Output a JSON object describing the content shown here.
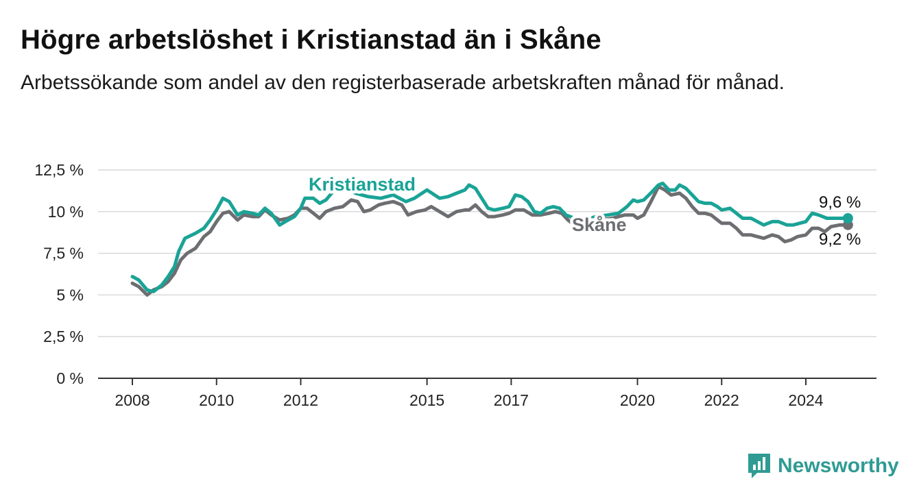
{
  "header": {
    "title": "Högre arbetslöshet i Kristianstad än i Skåne",
    "subtitle": "Arbetssökande som andel av den registerbaserade arbetskraften månad för månad."
  },
  "brand": {
    "name": "Newsworthy",
    "color": "#2f9b93",
    "icon": "bar-chart-logo-icon"
  },
  "chart_data": {
    "type": "line",
    "title": "Högre arbetslöshet i Kristianstad än i Skåne",
    "subtitle": "Arbetssökande som andel av den registerbaserade arbetskraften månad för månad.",
    "ylim": [
      0,
      12.5
    ],
    "xlim": [
      2008.0,
      2025.8
    ],
    "y_ticks": [
      {
        "value": 0,
        "label": "0 %"
      },
      {
        "value": 2.5,
        "label": "2,5 %"
      },
      {
        "value": 5,
        "label": "5 %"
      },
      {
        "value": 7.5,
        "label": "7,5 %"
      },
      {
        "value": 10,
        "label": "10 %"
      },
      {
        "value": 12.5,
        "label": "12,5 %"
      }
    ],
    "x_ticks": [
      {
        "value": 2008.0,
        "label": "2008"
      },
      {
        "value": 2010.0,
        "label": "2010"
      },
      {
        "value": 2012.0,
        "label": "2012"
      },
      {
        "value": 2015.0,
        "label": "2015"
      },
      {
        "value": 2017.0,
        "label": "2017"
      },
      {
        "value": 2020.0,
        "label": "2020"
      },
      {
        "value": 2022.0,
        "label": "2022"
      },
      {
        "value": 2024.0,
        "label": "2024"
      }
    ],
    "grid": true,
    "series": [
      {
        "name": "Kristianstad",
        "color": "#1aa396",
        "end_label": "9,6 %",
        "points": [
          [
            2008.0,
            6.1
          ],
          [
            2008.15,
            5.9
          ],
          [
            2008.35,
            5.3
          ],
          [
            2008.5,
            5.2
          ],
          [
            2008.7,
            5.6
          ],
          [
            2008.85,
            6.1
          ],
          [
            2009.0,
            6.7
          ],
          [
            2009.1,
            7.6
          ],
          [
            2009.25,
            8.4
          ],
          [
            2009.5,
            8.7
          ],
          [
            2009.7,
            9.0
          ],
          [
            2009.85,
            9.5
          ],
          [
            2010.0,
            10.1
          ],
          [
            2010.15,
            10.8
          ],
          [
            2010.3,
            10.6
          ],
          [
            2010.5,
            9.8
          ],
          [
            2010.65,
            10.0
          ],
          [
            2010.85,
            9.9
          ],
          [
            2011.0,
            9.8
          ],
          [
            2011.15,
            10.2
          ],
          [
            2011.3,
            9.9
          ],
          [
            2011.5,
            9.2
          ],
          [
            2011.7,
            9.5
          ],
          [
            2011.85,
            9.7
          ],
          [
            2012.0,
            10.2
          ],
          [
            2012.1,
            10.8
          ],
          [
            2012.3,
            10.8
          ],
          [
            2012.45,
            10.5
          ],
          [
            2012.6,
            10.7
          ],
          [
            2012.8,
            11.3
          ],
          [
            2013.0,
            11.6
          ],
          [
            2013.3,
            11.1
          ],
          [
            2013.6,
            10.9
          ],
          [
            2013.9,
            10.8
          ],
          [
            2014.2,
            11.0
          ],
          [
            2014.5,
            10.6
          ],
          [
            2014.7,
            10.8
          ],
          [
            2015.0,
            11.3
          ],
          [
            2015.3,
            10.8
          ],
          [
            2015.5,
            10.9
          ],
          [
            2015.7,
            11.1
          ],
          [
            2015.9,
            11.3
          ],
          [
            2016.0,
            11.6
          ],
          [
            2016.15,
            11.4
          ],
          [
            2016.3,
            10.8
          ],
          [
            2016.45,
            10.2
          ],
          [
            2016.6,
            10.1
          ],
          [
            2016.8,
            10.2
          ],
          [
            2016.95,
            10.3
          ],
          [
            2017.1,
            11.0
          ],
          [
            2017.25,
            10.9
          ],
          [
            2017.4,
            10.6
          ],
          [
            2017.55,
            10.0
          ],
          [
            2017.7,
            9.9
          ],
          [
            2017.85,
            10.2
          ],
          [
            2018.0,
            10.3
          ],
          [
            2018.15,
            10.2
          ],
          [
            2018.3,
            9.8
          ],
          [
            2018.5,
            9.6
          ],
          [
            2018.7,
            9.4
          ],
          [
            2019.0,
            9.7
          ],
          [
            2019.3,
            9.8
          ],
          [
            2019.55,
            9.9
          ],
          [
            2019.75,
            10.3
          ],
          [
            2019.9,
            10.7
          ],
          [
            2020.0,
            10.6
          ],
          [
            2020.15,
            10.7
          ],
          [
            2020.35,
            11.2
          ],
          [
            2020.5,
            11.6
          ],
          [
            2020.6,
            11.7
          ],
          [
            2020.75,
            11.3
          ],
          [
            2020.9,
            11.3
          ],
          [
            2021.0,
            11.6
          ],
          [
            2021.15,
            11.4
          ],
          [
            2021.3,
            11.0
          ],
          [
            2021.45,
            10.6
          ],
          [
            2021.6,
            10.5
          ],
          [
            2021.75,
            10.5
          ],
          [
            2021.9,
            10.3
          ],
          [
            2022.0,
            10.1
          ],
          [
            2022.2,
            10.2
          ],
          [
            2022.35,
            9.9
          ],
          [
            2022.5,
            9.6
          ],
          [
            2022.7,
            9.6
          ],
          [
            2022.85,
            9.4
          ],
          [
            2023.0,
            9.2
          ],
          [
            2023.2,
            9.4
          ],
          [
            2023.35,
            9.4
          ],
          [
            2023.55,
            9.2
          ],
          [
            2023.7,
            9.2
          ],
          [
            2023.85,
            9.3
          ],
          [
            2024.0,
            9.4
          ],
          [
            2024.15,
            9.9
          ],
          [
            2024.3,
            9.8
          ],
          [
            2024.5,
            9.6
          ],
          [
            2024.65,
            9.6
          ],
          [
            2024.8,
            9.6
          ],
          [
            2025.0,
            9.6
          ]
        ]
      },
      {
        "name": "Skåne",
        "color": "#6d6e71",
        "end_label": "9,2 %",
        "points": [
          [
            2008.0,
            5.7
          ],
          [
            2008.15,
            5.5
          ],
          [
            2008.35,
            5.0
          ],
          [
            2008.5,
            5.3
          ],
          [
            2008.7,
            5.5
          ],
          [
            2008.85,
            5.8
          ],
          [
            2009.0,
            6.3
          ],
          [
            2009.15,
            7.1
          ],
          [
            2009.3,
            7.5
          ],
          [
            2009.5,
            7.8
          ],
          [
            2009.7,
            8.5
          ],
          [
            2009.85,
            8.8
          ],
          [
            2010.0,
            9.4
          ],
          [
            2010.15,
            9.9
          ],
          [
            2010.3,
            10.0
          ],
          [
            2010.5,
            9.5
          ],
          [
            2010.65,
            9.8
          ],
          [
            2010.85,
            9.7
          ],
          [
            2011.0,
            9.7
          ],
          [
            2011.15,
            10.1
          ],
          [
            2011.3,
            9.8
          ],
          [
            2011.5,
            9.5
          ],
          [
            2011.7,
            9.6
          ],
          [
            2011.85,
            9.8
          ],
          [
            2012.0,
            10.2
          ],
          [
            2012.15,
            10.2
          ],
          [
            2012.3,
            9.9
          ],
          [
            2012.45,
            9.6
          ],
          [
            2012.6,
            10.0
          ],
          [
            2012.8,
            10.2
          ],
          [
            2013.0,
            10.3
          ],
          [
            2013.2,
            10.7
          ],
          [
            2013.35,
            10.6
          ],
          [
            2013.5,
            10.0
          ],
          [
            2013.65,
            10.1
          ],
          [
            2013.85,
            10.4
          ],
          [
            2014.0,
            10.5
          ],
          [
            2014.2,
            10.6
          ],
          [
            2014.4,
            10.4
          ],
          [
            2014.55,
            9.8
          ],
          [
            2014.75,
            10.0
          ],
          [
            2014.95,
            10.1
          ],
          [
            2015.1,
            10.3
          ],
          [
            2015.3,
            10.0
          ],
          [
            2015.5,
            9.7
          ],
          [
            2015.7,
            10.0
          ],
          [
            2015.9,
            10.1
          ],
          [
            2016.0,
            10.1
          ],
          [
            2016.15,
            10.4
          ],
          [
            2016.3,
            10.0
          ],
          [
            2016.45,
            9.7
          ],
          [
            2016.6,
            9.7
          ],
          [
            2016.8,
            9.8
          ],
          [
            2016.95,
            9.9
          ],
          [
            2017.1,
            10.1
          ],
          [
            2017.3,
            10.1
          ],
          [
            2017.5,
            9.8
          ],
          [
            2017.7,
            9.8
          ],
          [
            2017.9,
            9.9
          ],
          [
            2018.05,
            10.0
          ],
          [
            2018.2,
            9.9
          ],
          [
            2018.35,
            9.5
          ],
          [
            2018.5,
            9.2
          ],
          [
            2018.8,
            9.4
          ],
          [
            2019.1,
            9.5
          ],
          [
            2019.4,
            9.6
          ],
          [
            2019.7,
            9.8
          ],
          [
            2019.9,
            9.8
          ],
          [
            2020.0,
            9.6
          ],
          [
            2020.15,
            9.8
          ],
          [
            2020.3,
            10.5
          ],
          [
            2020.5,
            11.5
          ],
          [
            2020.65,
            11.3
          ],
          [
            2020.8,
            11.0
          ],
          [
            2021.0,
            11.1
          ],
          [
            2021.15,
            10.8
          ],
          [
            2021.3,
            10.3
          ],
          [
            2021.45,
            9.9
          ],
          [
            2021.6,
            9.9
          ],
          [
            2021.75,
            9.8
          ],
          [
            2021.9,
            9.5
          ],
          [
            2022.0,
            9.3
          ],
          [
            2022.2,
            9.3
          ],
          [
            2022.35,
            9.0
          ],
          [
            2022.5,
            8.6
          ],
          [
            2022.7,
            8.6
          ],
          [
            2022.85,
            8.5
          ],
          [
            2023.0,
            8.4
          ],
          [
            2023.2,
            8.6
          ],
          [
            2023.35,
            8.5
          ],
          [
            2023.5,
            8.2
          ],
          [
            2023.65,
            8.3
          ],
          [
            2023.8,
            8.5
          ],
          [
            2024.0,
            8.6
          ],
          [
            2024.15,
            9.0
          ],
          [
            2024.3,
            9.0
          ],
          [
            2024.45,
            8.8
          ],
          [
            2024.6,
            9.1
          ],
          [
            2024.8,
            9.2
          ],
          [
            2025.0,
            9.2
          ]
        ]
      }
    ]
  }
}
